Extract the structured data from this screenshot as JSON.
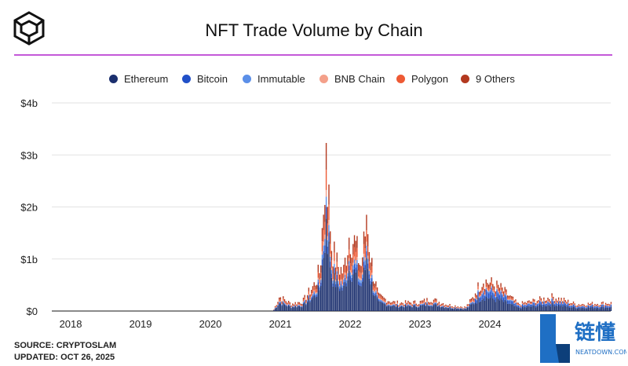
{
  "header": {
    "title": "NFT Trade Volume by Chain",
    "logo_icon": "cube-logo-icon"
  },
  "footer": {
    "source": "SOURCE: CRYPTOSLAM",
    "updated": "UPDATED: OCT 26, 2025"
  },
  "watermark": {
    "chars": "链懂",
    "site": "NEATDOWN.COM"
  },
  "colors": {
    "accent_rule": "#c458d8",
    "Ethereum": "#1b2f6e",
    "Bitcoin": "#2150c8",
    "Immutable": "#5b8fe8",
    "BNB Chain": "#f4a08a",
    "Polygon": "#ee5a34",
    "9 Others": "#b3391f"
  },
  "chart_data": {
    "type": "bar",
    "stacked": true,
    "title": "NFT Trade Volume by Chain",
    "xlabel": "",
    "ylabel": "",
    "grid": true,
    "legend_position": "top",
    "y_ticks": [
      "$0",
      "$1b",
      "$2b",
      "$3b",
      "$4b"
    ],
    "y_tick_values": [
      0,
      1,
      2,
      3,
      4
    ],
    "ylim": [
      0,
      4
    ],
    "y_unit": "billions USD",
    "x_ticks": [
      "2018",
      "2019",
      "2020",
      "2021",
      "2022",
      "2023",
      "2024"
    ],
    "x_range": [
      "2017-10",
      "2025-10"
    ],
    "series_names": [
      "Ethereum",
      "Bitcoin",
      "Immutable",
      "BNB Chain",
      "Polygon",
      "9 Others"
    ],
    "approximate_weekly_total_volume_b": [
      {
        "date": "2020-12",
        "value": 0.02
      },
      {
        "date": "2021-01",
        "value": 0.3
      },
      {
        "date": "2021-03",
        "value": 0.15
      },
      {
        "date": "2021-05",
        "value": 0.2
      },
      {
        "date": "2021-07",
        "value": 0.55
      },
      {
        "date": "2021-08",
        "value": 0.85
      },
      {
        "date": "2021-09",
        "value": 3.23
      },
      {
        "date": "2021-10",
        "value": 1.3
      },
      {
        "date": "2021-11",
        "value": 0.95
      },
      {
        "date": "2021-12",
        "value": 0.8
      },
      {
        "date": "2022-01",
        "value": 1.6
      },
      {
        "date": "2022-02",
        "value": 1.4
      },
      {
        "date": "2022-03",
        "value": 0.9
      },
      {
        "date": "2022-04",
        "value": 1.85
      },
      {
        "date": "2022-05",
        "value": 0.85
      },
      {
        "date": "2022-06",
        "value": 0.3
      },
      {
        "date": "2022-09",
        "value": 0.17
      },
      {
        "date": "2023-01",
        "value": 0.18
      },
      {
        "date": "2023-03",
        "value": 0.25
      },
      {
        "date": "2023-06",
        "value": 0.13
      },
      {
        "date": "2023-09",
        "value": 0.08
      },
      {
        "date": "2023-12",
        "value": 0.55
      },
      {
        "date": "2024-03",
        "value": 0.4
      },
      {
        "date": "2024-06",
        "value": 0.12
      },
      {
        "date": "2024-12",
        "value": 0.25
      },
      {
        "date": "2025-04",
        "value": 0.12
      },
      {
        "date": "2025-09",
        "value": 0.14
      }
    ],
    "approximate_chain_share": {
      "Ethereum": 0.55,
      "Bitcoin": 0.07,
      "Immutable": 0.06,
      "BNB Chain": 0.04,
      "Polygon": 0.12,
      "9 Others": 0.16
    }
  }
}
